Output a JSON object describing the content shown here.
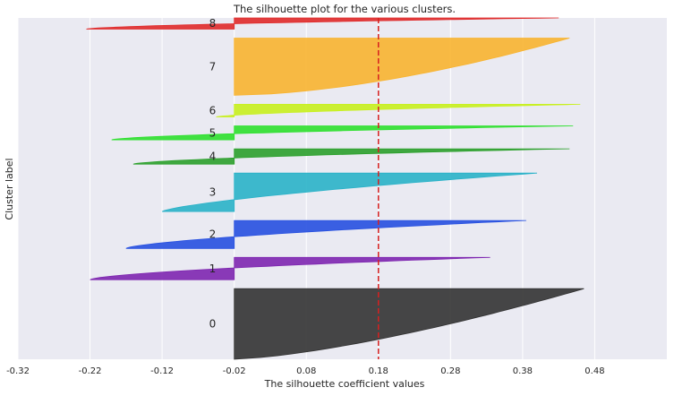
{
  "chart_data": {
    "type": "area",
    "title": "The silhouette plot for the various clusters.",
    "xlabel": "The silhouette coefficient values",
    "ylabel": "Cluster label",
    "xlim": [
      -0.32,
      0.58
    ],
    "xticks": [
      -0.32,
      -0.22,
      -0.12,
      -0.02,
      0.08,
      0.18,
      0.28,
      0.38,
      0.48
    ],
    "xtick_labels": [
      "-0.32",
      "-0.22",
      "-0.12",
      "-0.02",
      "0.08",
      "0.18",
      "0.28",
      "0.38",
      "0.48"
    ],
    "grid": true,
    "average_silhouette": 0.18,
    "clusters": [
      {
        "label": "0",
        "color": "#333333",
        "min": -0.02,
        "max": 0.465,
        "size": 101,
        "curve": 0.7
      },
      {
        "label": "1",
        "color": "#7e26b0",
        "min": -0.22,
        "max": 0.335,
        "size": 32,
        "curve": 1.6
      },
      {
        "label": "2",
        "color": "#2750e0",
        "min": -0.17,
        "max": 0.385,
        "size": 40,
        "curve": 1.5
      },
      {
        "label": "3",
        "color": "#2ab2c8",
        "min": -0.12,
        "max": 0.4,
        "size": 55,
        "curve": 1.4
      },
      {
        "label": "4",
        "color": "#2ca02c",
        "min": -0.16,
        "max": 0.445,
        "size": 22,
        "curve": 1.6
      },
      {
        "label": "5",
        "color": "#2de02d",
        "min": -0.19,
        "max": 0.45,
        "size": 20,
        "curve": 1.6
      },
      {
        "label": "6",
        "color": "#c8f01e",
        "min": -0.045,
        "max": 0.46,
        "size": 18,
        "curve": 1.5
      },
      {
        "label": "7",
        "color": "#f8b430",
        "min": -0.02,
        "max": 0.445,
        "size": 82,
        "curve": 0.6
      },
      {
        "label": "8",
        "color": "#e02a2a",
        "min": -0.225,
        "max": 0.43,
        "size": 16,
        "curve": 1.6
      }
    ]
  }
}
